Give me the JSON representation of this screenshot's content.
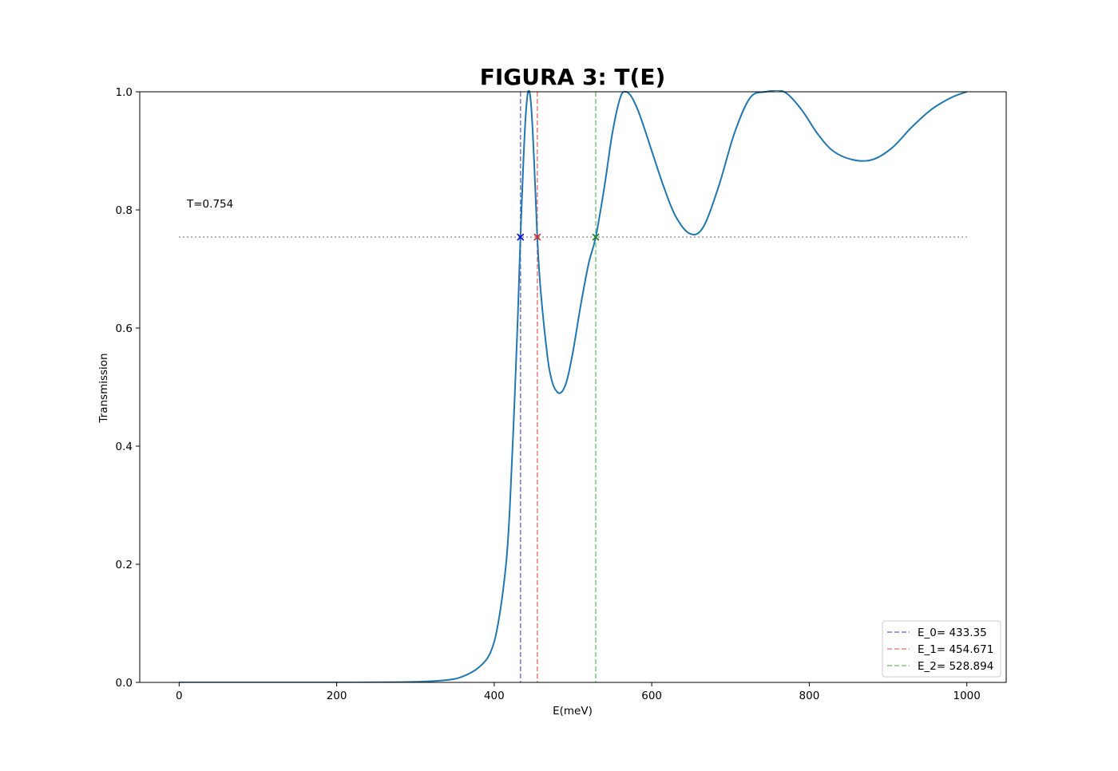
{
  "chart_data": {
    "type": "line",
    "title": "FIGURA 3: T(E)",
    "xlabel": "E(meV)",
    "ylabel": "Transmission",
    "xlim": [
      -50,
      1050
    ],
    "ylim": [
      0,
      1.0
    ],
    "xticks": [
      0,
      200,
      400,
      600,
      800,
      1000
    ],
    "xtick_labels": [
      "0",
      "200",
      "400",
      "600",
      "800",
      "1000"
    ],
    "yticks": [
      0,
      0.2,
      0.4,
      0.6,
      0.8,
      1.0
    ],
    "ytick_labels": [
      "0.0",
      "0.2",
      "0.4",
      "0.6",
      "0.8",
      "1.0"
    ],
    "grid": false,
    "legend_position": "lower-right",
    "annotation": "T=0.754",
    "threshold": 0.754,
    "series": [
      {
        "color": "#1f77b4",
        "x": [
          0,
          100,
          200,
          300,
          340,
          360,
          380,
          395,
          405,
          415,
          420,
          425,
          430,
          433.35,
          437,
          440,
          443,
          446,
          449,
          452,
          454.671,
          458,
          462,
          466,
          470,
          476,
          484,
          492,
          500,
          510,
          520,
          528.894,
          540,
          550,
          560,
          567,
          575,
          585,
          600,
          615,
          630,
          648,
          665,
          685,
          705,
          725,
          745,
          768,
          790,
          810,
          830,
          855,
          880,
          905,
          930,
          955,
          980,
          1000
        ],
        "y": [
          0,
          0,
          0,
          0.001,
          0.004,
          0.01,
          0.025,
          0.05,
          0.1,
          0.2,
          0.3,
          0.45,
          0.62,
          0.754,
          0.88,
          0.96,
          1.0,
          0.99,
          0.93,
          0.84,
          0.754,
          0.68,
          0.62,
          0.57,
          0.53,
          0.5,
          0.49,
          0.51,
          0.56,
          0.64,
          0.71,
          0.754,
          0.84,
          0.93,
          0.99,
          1.0,
          0.99,
          0.96,
          0.9,
          0.84,
          0.79,
          0.76,
          0.77,
          0.84,
          0.93,
          0.99,
          1.0,
          1.0,
          0.97,
          0.93,
          0.9,
          0.885,
          0.885,
          0.905,
          0.94,
          0.97,
          0.99,
          1.0
        ]
      }
    ],
    "vlines": [
      {
        "label": "E_0= 433.35",
        "x": 433.35,
        "color": "#7b7bdb"
      },
      {
        "label": "E_1= 454.671",
        "x": 454.671,
        "color": "#f08080"
      },
      {
        "label": "E_2= 528.894",
        "x": 528.894,
        "color": "#7ccf7c"
      }
    ],
    "markers": [
      {
        "x": 433.35,
        "y": 0.754,
        "color": "#0000cc"
      },
      {
        "x": 454.671,
        "y": 0.754,
        "color": "#dd2020"
      },
      {
        "x": 528.894,
        "y": 0.754,
        "color": "#208020"
      }
    ]
  }
}
